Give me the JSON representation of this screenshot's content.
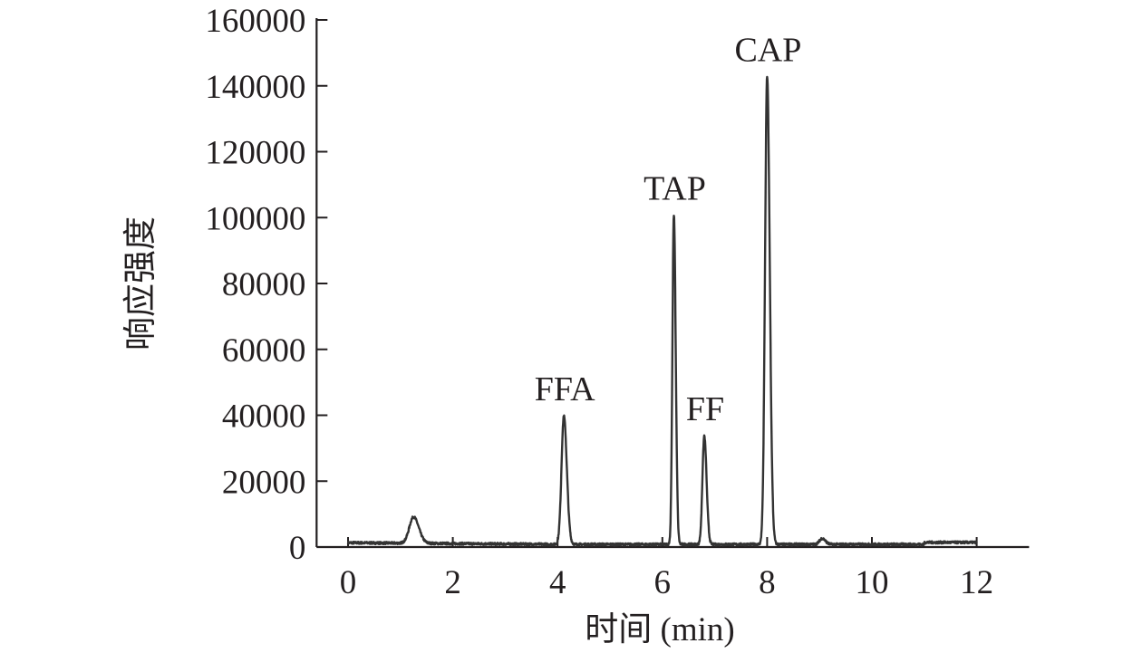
{
  "chart_data": {
    "type": "line",
    "title": "",
    "xlabel": "时间 (min)",
    "ylabel": "响应强度",
    "xlim": [
      -0.6,
      13
    ],
    "ylim": [
      0,
      160000
    ],
    "x_ticks": [
      0,
      2,
      4,
      6,
      8,
      10,
      12
    ],
    "x_tick_labels": [
      "0",
      "2",
      "4",
      "6",
      "8",
      "10",
      "12"
    ],
    "y_ticks": [
      0,
      20000,
      40000,
      60000,
      80000,
      100000,
      120000,
      140000,
      160000
    ],
    "y_tick_labels": [
      "0",
      "20000",
      "40000",
      "60000",
      "80000",
      "100000",
      "120000",
      "140000",
      "160000"
    ],
    "grid": false,
    "legend": "none",
    "baseline": 800,
    "series": [
      {
        "peaks": [
          {
            "label": "",
            "rt": 1.25,
            "height": 8000,
            "width": 0.08
          },
          {
            "label": "FFA",
            "rt": 4.12,
            "height": 39000,
            "width": 0.045
          },
          {
            "label": "TAP",
            "rt": 6.22,
            "height": 100000,
            "width": 0.028
          },
          {
            "label": "FF",
            "rt": 6.8,
            "height": 33000,
            "width": 0.035
          },
          {
            "label": "CAP",
            "rt": 8.0,
            "height": 142000,
            "width": 0.04
          },
          {
            "label": "",
            "rt": 9.05,
            "height": 1800,
            "width": 0.05
          }
        ]
      }
    ],
    "color": "#333333"
  }
}
